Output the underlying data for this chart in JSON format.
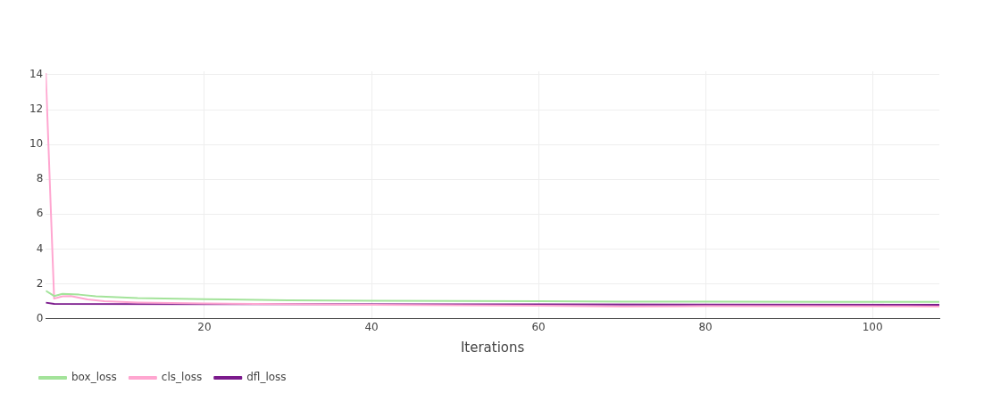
{
  "chart_data": {
    "type": "line",
    "xlabel": "Iterations",
    "xlim": [
      1,
      108
    ],
    "xticks": [
      20,
      40,
      60,
      80,
      100
    ],
    "ylim": [
      0,
      14.2
    ],
    "yticks": [
      0,
      2,
      4,
      6,
      8,
      10,
      12,
      14
    ],
    "grid": true,
    "legend": "bottom left",
    "marker": "none",
    "line_style": "solid",
    "series": [
      {
        "name": "box_loss",
        "color": "#a3e39a",
        "x": [
          1,
          2,
          3,
          5,
          7,
          12,
          20,
          30,
          40,
          60,
          70,
          80,
          95,
          108
        ],
        "values": [
          1.6,
          1.3,
          1.42,
          1.38,
          1.28,
          1.18,
          1.12,
          1.05,
          1.03,
          1.0,
          0.98,
          0.98,
          0.97,
          0.97
        ]
      },
      {
        "name": "cls_loss",
        "color": "#ffa6d0",
        "x": [
          1,
          2,
          3,
          4,
          6,
          8,
          12,
          20,
          40,
          60,
          70,
          80,
          108
        ],
        "values": [
          14.1,
          1.15,
          1.28,
          1.3,
          1.1,
          1.0,
          0.93,
          0.87,
          0.8,
          0.75,
          0.7,
          0.72,
          0.7
        ]
      },
      {
        "name": "dfl_loss",
        "color": "#7b1a8c",
        "x": [
          1,
          2,
          20,
          60,
          108
        ],
        "values": [
          0.92,
          0.85,
          0.84,
          0.82,
          0.8
        ]
      }
    ]
  }
}
